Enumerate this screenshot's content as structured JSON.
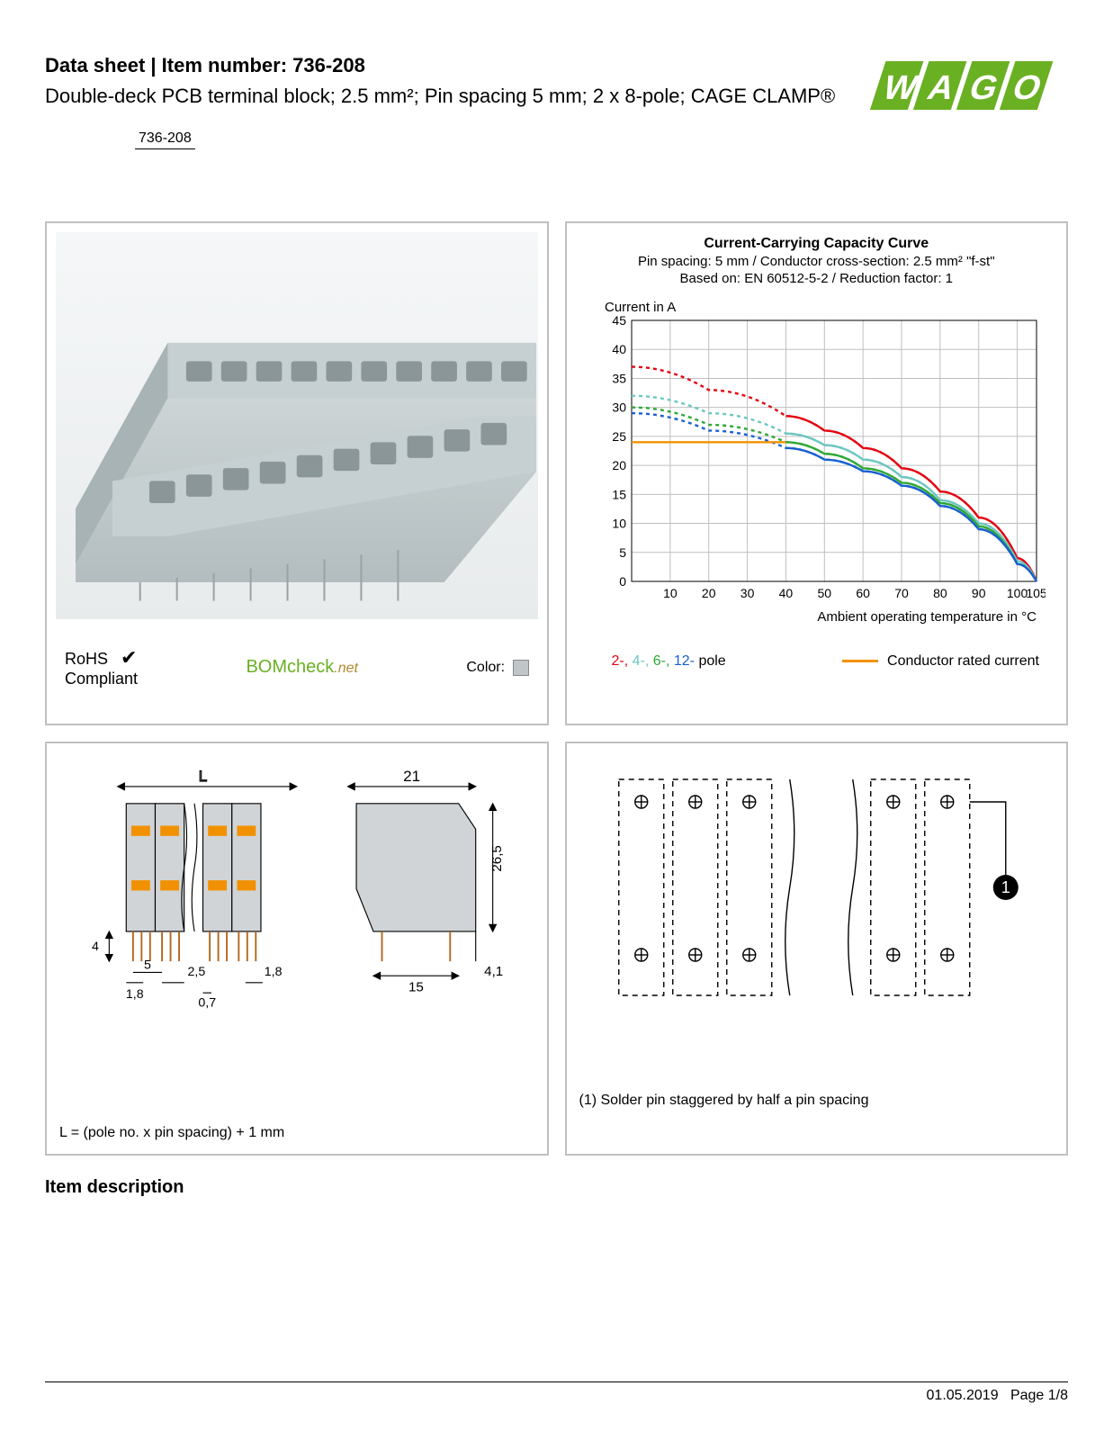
{
  "header": {
    "title_prefix": "Data sheet",
    "title_sep": "  |  ",
    "title_item_label": "Item number: ",
    "item_number": "736-208",
    "subtitle": "Double-deck PCB terminal block; 2.5 mm²; Pin spacing 5 mm; 2 x 8-pole; CAGE CLAMP®",
    "chip": "736-208"
  },
  "logo": {
    "text": "WAGO",
    "fill": "#6ab023",
    "shadow": "#3a6b12"
  },
  "product_panel": {
    "rohs_line1": "RoHS",
    "rohs_line2": "Compliant",
    "bomcheck": "BOMcheck",
    "bomcheck_suffix": ".net",
    "color_label": "Color:",
    "swatch_color": "#c0c6c8",
    "block_color": "#c6cfd1",
    "block_shade": "#a8b3b5"
  },
  "chart": {
    "title": "Current-Carrying Capacity Curve",
    "sub1": "Pin spacing: 5 mm / Conductor cross-section: 2.5 mm² \"f-st\"",
    "sub2": "Based on: EN 60512-5-2 / Reduction factor: 1",
    "y_label": "Current in A",
    "x_label": "Ambient operating temperature in °C",
    "ylim": [
      0,
      45
    ],
    "ytick_step": 5,
    "xlim": [
      0,
      105
    ],
    "xticks": [
      10,
      20,
      30,
      40,
      50,
      60,
      70,
      80,
      90,
      100,
      105
    ],
    "grid_color": "#bfbfbf",
    "bg": "#ffffff",
    "series": [
      {
        "name": "2-pole",
        "color": "#e30613",
        "dash": "4,4",
        "points": [
          [
            0,
            37
          ],
          [
            20,
            33
          ],
          [
            40,
            28.5
          ],
          [
            50,
            26
          ],
          [
            60,
            23
          ],
          [
            70,
            19.5
          ],
          [
            80,
            15.5
          ],
          [
            90,
            11
          ],
          [
            100,
            4
          ],
          [
            105,
            0
          ]
        ]
      },
      {
        "name": "4-pole",
        "color": "#6dc6c1",
        "dash": "4,4",
        "points": [
          [
            0,
            32
          ],
          [
            20,
            29
          ],
          [
            40,
            25.5
          ],
          [
            50,
            23.5
          ],
          [
            60,
            21
          ],
          [
            70,
            18
          ],
          [
            80,
            14
          ],
          [
            90,
            10
          ],
          [
            100,
            3.5
          ],
          [
            105,
            0
          ]
        ]
      },
      {
        "name": "6-pole",
        "color": "#2fa836",
        "dash": "4,4",
        "points": [
          [
            0,
            30
          ],
          [
            20,
            27
          ],
          [
            40,
            24
          ],
          [
            50,
            22
          ],
          [
            60,
            19.5
          ],
          [
            70,
            17
          ],
          [
            80,
            13.5
          ],
          [
            90,
            9.5
          ],
          [
            100,
            3
          ],
          [
            105,
            0
          ]
        ]
      },
      {
        "name": "12-pole",
        "color": "#1860d0",
        "dash": "4,4",
        "points": [
          [
            0,
            29
          ],
          [
            20,
            26
          ],
          [
            40,
            23
          ],
          [
            50,
            21
          ],
          [
            60,
            19
          ],
          [
            70,
            16.5
          ],
          [
            80,
            13
          ],
          [
            90,
            9
          ],
          [
            100,
            3
          ],
          [
            105,
            0
          ]
        ]
      },
      {
        "name": "rated",
        "color": "#f29100",
        "dash": "",
        "points": [
          [
            0,
            24
          ],
          [
            40,
            24
          ],
          [
            40,
            24
          ]
        ]
      },
      {
        "name": "2-pole-solid",
        "color": "#e30613",
        "dash": "",
        "points": [
          [
            40,
            28.5
          ],
          [
            50,
            26
          ],
          [
            60,
            23
          ],
          [
            70,
            19.5
          ],
          [
            80,
            15.5
          ],
          [
            90,
            11
          ],
          [
            100,
            4
          ],
          [
            105,
            0
          ]
        ]
      },
      {
        "name": "4-pole-solid",
        "color": "#6dc6c1",
        "dash": "",
        "points": [
          [
            40,
            25.5
          ],
          [
            50,
            23.5
          ],
          [
            60,
            21
          ],
          [
            70,
            18
          ],
          [
            80,
            14
          ],
          [
            90,
            10
          ],
          [
            100,
            3.5
          ],
          [
            105,
            0
          ]
        ]
      },
      {
        "name": "6-pole-solid",
        "color": "#2fa836",
        "dash": "",
        "points": [
          [
            40,
            24
          ],
          [
            50,
            22
          ],
          [
            60,
            19.5
          ],
          [
            70,
            17
          ],
          [
            80,
            13.5
          ],
          [
            90,
            9.5
          ],
          [
            100,
            3
          ],
          [
            105,
            0
          ]
        ]
      },
      {
        "name": "12-pole-solid",
        "color": "#1860d0",
        "dash": "",
        "points": [
          [
            40,
            23
          ],
          [
            50,
            21
          ],
          [
            60,
            19
          ],
          [
            70,
            16.5
          ],
          [
            80,
            13
          ],
          [
            90,
            9
          ],
          [
            100,
            3
          ],
          [
            105,
            0
          ]
        ]
      }
    ],
    "legend_poles": [
      {
        "label": "2-,",
        "color": "#e30613"
      },
      {
        "label": " 4-,",
        "color": "#6dc6c1"
      },
      {
        "label": " 6-,",
        "color": "#2fa836"
      },
      {
        "label": " 12-",
        "color": "#1860d0"
      }
    ],
    "legend_poles_suffix": "  pole",
    "legend_conductor": "Conductor rated current"
  },
  "dim_panel": {
    "L_label": "L",
    "width_label": "21",
    "height_label": "26,5",
    "base_label": "15",
    "tail_label": "4,1",
    "d1": "4",
    "d2": "1,8",
    "d3": "5",
    "d4": "2,5",
    "d5": "0,7",
    "d6": "1,8",
    "note": "L = (pole no. x pin spacing) + 1 mm",
    "body_fill": "#d0d4d6",
    "clamp_fill": "#f29100"
  },
  "schematic_panel": {
    "note": "(1) Solder pin staggered by half a pin spacing",
    "callout": "1"
  },
  "section": {
    "desc_title": "Item description"
  },
  "footer": {
    "date": "01.05.2019",
    "page": "Page 1/8"
  }
}
